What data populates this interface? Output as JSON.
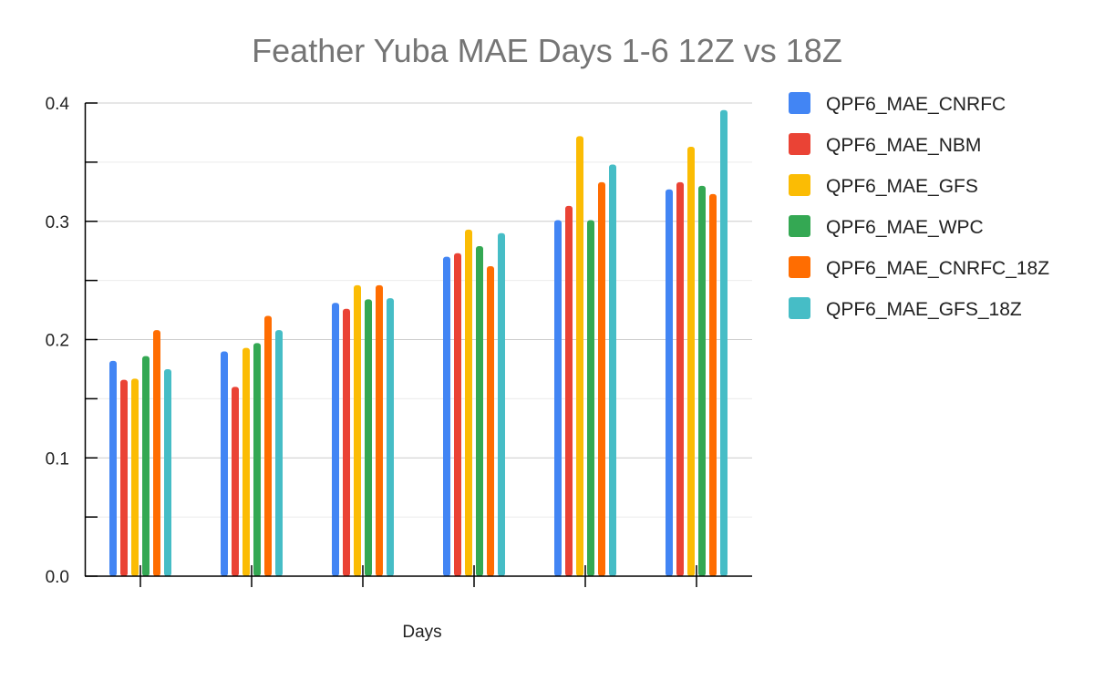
{
  "chart_data": {
    "type": "bar",
    "title": "Feather Yuba MAE Days 1-6 12Z vs 18Z",
    "xlabel": "Days",
    "ylabel": "",
    "categories": [
      "",
      "",
      "",
      "",
      "",
      ""
    ],
    "ylim": [
      0,
      0.4
    ],
    "yticks": [
      "0.0",
      "0.1",
      "0.2",
      "0.3",
      "0.4"
    ],
    "grid": true,
    "legend_position": "right",
    "series": [
      {
        "name": "QPF6_MAE_CNRFC",
        "color": "#4285f4",
        "values": [
          0.182,
          0.19,
          0.231,
          0.27,
          0.301,
          0.327
        ]
      },
      {
        "name": "QPF6_MAE_NBM",
        "color": "#ea4335",
        "values": [
          0.166,
          0.16,
          0.226,
          0.273,
          0.313,
          0.333
        ]
      },
      {
        "name": "QPF6_MAE_GFS",
        "color": "#fbbc04",
        "values": [
          0.167,
          0.193,
          0.246,
          0.293,
          0.372,
          0.363
        ]
      },
      {
        "name": "QPF6_MAE_WPC",
        "color": "#34a853",
        "values": [
          0.186,
          0.197,
          0.234,
          0.279,
          0.301,
          0.33
        ]
      },
      {
        "name": "QPF6_MAE_CNRFC_18Z",
        "color": "#ff6d01",
        "values": [
          0.208,
          0.22,
          0.246,
          0.262,
          0.333,
          0.323
        ]
      },
      {
        "name": "QPF6_MAE_GFS_18Z",
        "color": "#46bdc6",
        "values": [
          0.175,
          0.208,
          0.235,
          0.29,
          0.348,
          0.394
        ]
      }
    ]
  }
}
